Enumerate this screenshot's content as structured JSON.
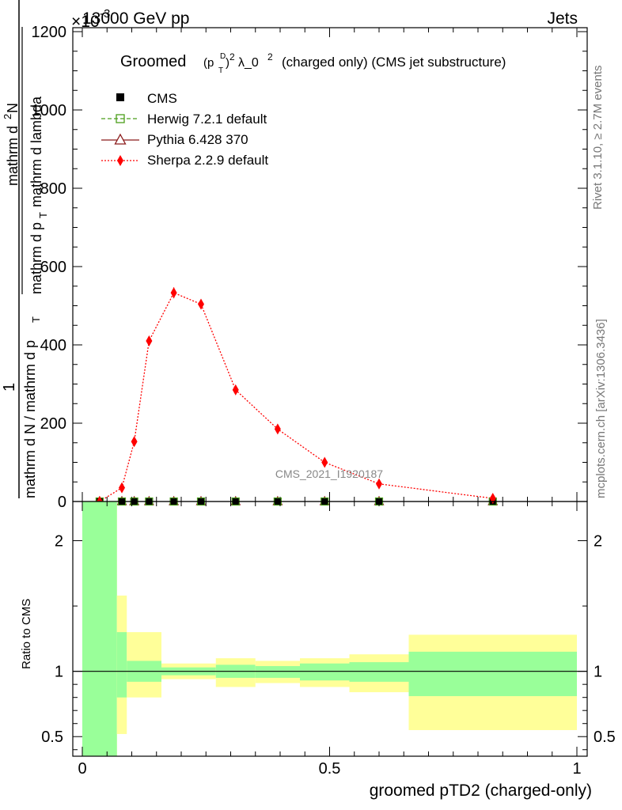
{
  "header": {
    "left": "13000 GeV pp",
    "right": "Jets",
    "exponent": "×10",
    "exponent_power": "-3"
  },
  "side_text": {
    "rivet": "Rivet 3.1.10, ≥ 2.7M events",
    "mcplots": "mcplots.cern.ch [arXiv:1306.3436]"
  },
  "watermark": "CMS_2021_I1920187",
  "colors": {
    "cms": "#000000",
    "herwig": "#4a9e1a",
    "pythia": "#8b1a1a",
    "sherpa": "#ff0000",
    "band_inner": "#99ff99",
    "band_outer": "#ffff99"
  },
  "chart_data": [
    {
      "type": "line",
      "title_main": "Groomed",
      "title_formula": "(p",
      "title_sup": "D",
      "title_sub": "T",
      "title_rest": ")",
      "title_sq": "2",
      "title_lambda": "λ_0",
      "title_lambda_sq": "2",
      "title_tail": "(charged only) (CMS jet substructure)",
      "ylabel_top": "mathrm d",
      "ylabel_top_super": "2",
      "ylabel_top_N": "N",
      "ylabel_bottom": "mathrm d p",
      "ylabel_bottom_sub": "T",
      "ylabel_bottom_rest": "mathrm d lambda",
      "ylabel_outer_num": "1",
      "ylabel_outer_den": "mathrm d N / mathrm d p",
      "ylabel_outer_den_sub": "T",
      "xlim": [
        -0.02,
        1.0
      ],
      "ylim": [
        0,
        1200
      ],
      "y_ticks": [
        0,
        200,
        400,
        600,
        800,
        1000,
        1200
      ],
      "y_tick_labels": [
        "0",
        "200",
        "400",
        "600",
        "800",
        "1000",
        "1200"
      ],
      "legend_position": "top-left",
      "series": [
        {
          "name": "CMS",
          "marker": "square-filled",
          "x": [
            0.035,
            0.08,
            0.105,
            0.135,
            0.185,
            0.24,
            0.31,
            0.395,
            0.49,
            0.6,
            0.83
          ],
          "y": [
            0,
            0,
            0,
            0,
            0,
            0,
            0,
            0,
            0,
            0,
            0
          ]
        },
        {
          "name": "Herwig 7.2.1 default",
          "marker": "square-open",
          "line": "dashed",
          "x": [
            0.035,
            0.08,
            0.105,
            0.135,
            0.185,
            0.24,
            0.31,
            0.395,
            0.49,
            0.6,
            0.83
          ],
          "y": [
            0,
            0,
            0,
            0,
            0,
            0,
            0,
            0,
            0,
            0,
            0
          ]
        },
        {
          "name": "Pythia 6.428 370",
          "marker": "triangle-open",
          "line": "solid",
          "x": [
            0.035,
            0.08,
            0.105,
            0.135,
            0.185,
            0.24,
            0.31,
            0.395,
            0.49,
            0.6,
            0.83
          ],
          "y": [
            0,
            0,
            0,
            0,
            0,
            0,
            0,
            0,
            0,
            0,
            0
          ]
        },
        {
          "name": "Sherpa 2.2.9 default",
          "marker": "diamond-filled",
          "line": "dotted",
          "x": [
            0.035,
            0.08,
            0.105,
            0.135,
            0.185,
            0.24,
            0.31,
            0.395,
            0.49,
            0.6,
            0.83
          ],
          "y": [
            0,
            35,
            153,
            410,
            533,
            504,
            285,
            185,
            100,
            45,
            8
          ],
          "yerr": [
            0,
            5,
            8,
            12,
            14,
            13,
            9,
            7,
            5,
            3,
            2
          ]
        }
      ]
    },
    {
      "type": "area",
      "ylabel": "Ratio to CMS",
      "xlabel": "groomed pTD2 (charged-only)",
      "xlim": [
        -0.02,
        1.0
      ],
      "ylim": [
        0.35,
        2.3
      ],
      "x_ticks": [
        0,
        0.5,
        1
      ],
      "x_tick_labels": [
        "0",
        "0.5",
        "1"
      ],
      "y_ticks": [
        0.5,
        1,
        2
      ],
      "y_tick_labels": [
        "0.5",
        "1",
        "2"
      ],
      "bins": [
        {
          "x0": 0.0,
          "x1": 0.07,
          "inner": [
            0.35,
            2.3
          ],
          "outer": [
            0.35,
            2.3
          ]
        },
        {
          "x0": 0.07,
          "x1": 0.09,
          "inner": [
            0.8,
            1.3
          ],
          "outer": [
            0.52,
            1.58
          ]
        },
        {
          "x0": 0.09,
          "x1": 0.16,
          "inner": [
            0.92,
            1.08
          ],
          "outer": [
            0.8,
            1.3
          ]
        },
        {
          "x0": 0.16,
          "x1": 0.27,
          "inner": [
            0.97,
            1.03
          ],
          "outer": [
            0.94,
            1.06
          ]
        },
        {
          "x0": 0.27,
          "x1": 0.35,
          "inner": [
            0.95,
            1.05
          ],
          "outer": [
            0.88,
            1.1
          ]
        },
        {
          "x0": 0.35,
          "x1": 0.44,
          "inner": [
            0.95,
            1.04
          ],
          "outer": [
            0.91,
            1.08
          ]
        },
        {
          "x0": 0.44,
          "x1": 0.54,
          "inner": [
            0.93,
            1.06
          ],
          "outer": [
            0.88,
            1.1
          ]
        },
        {
          "x0": 0.54,
          "x1": 0.66,
          "inner": [
            0.92,
            1.07
          ],
          "outer": [
            0.84,
            1.13
          ]
        },
        {
          "x0": 0.66,
          "x1": 1.0,
          "inner": [
            0.81,
            1.15
          ],
          "outer": [
            0.55,
            1.28
          ]
        }
      ]
    }
  ]
}
